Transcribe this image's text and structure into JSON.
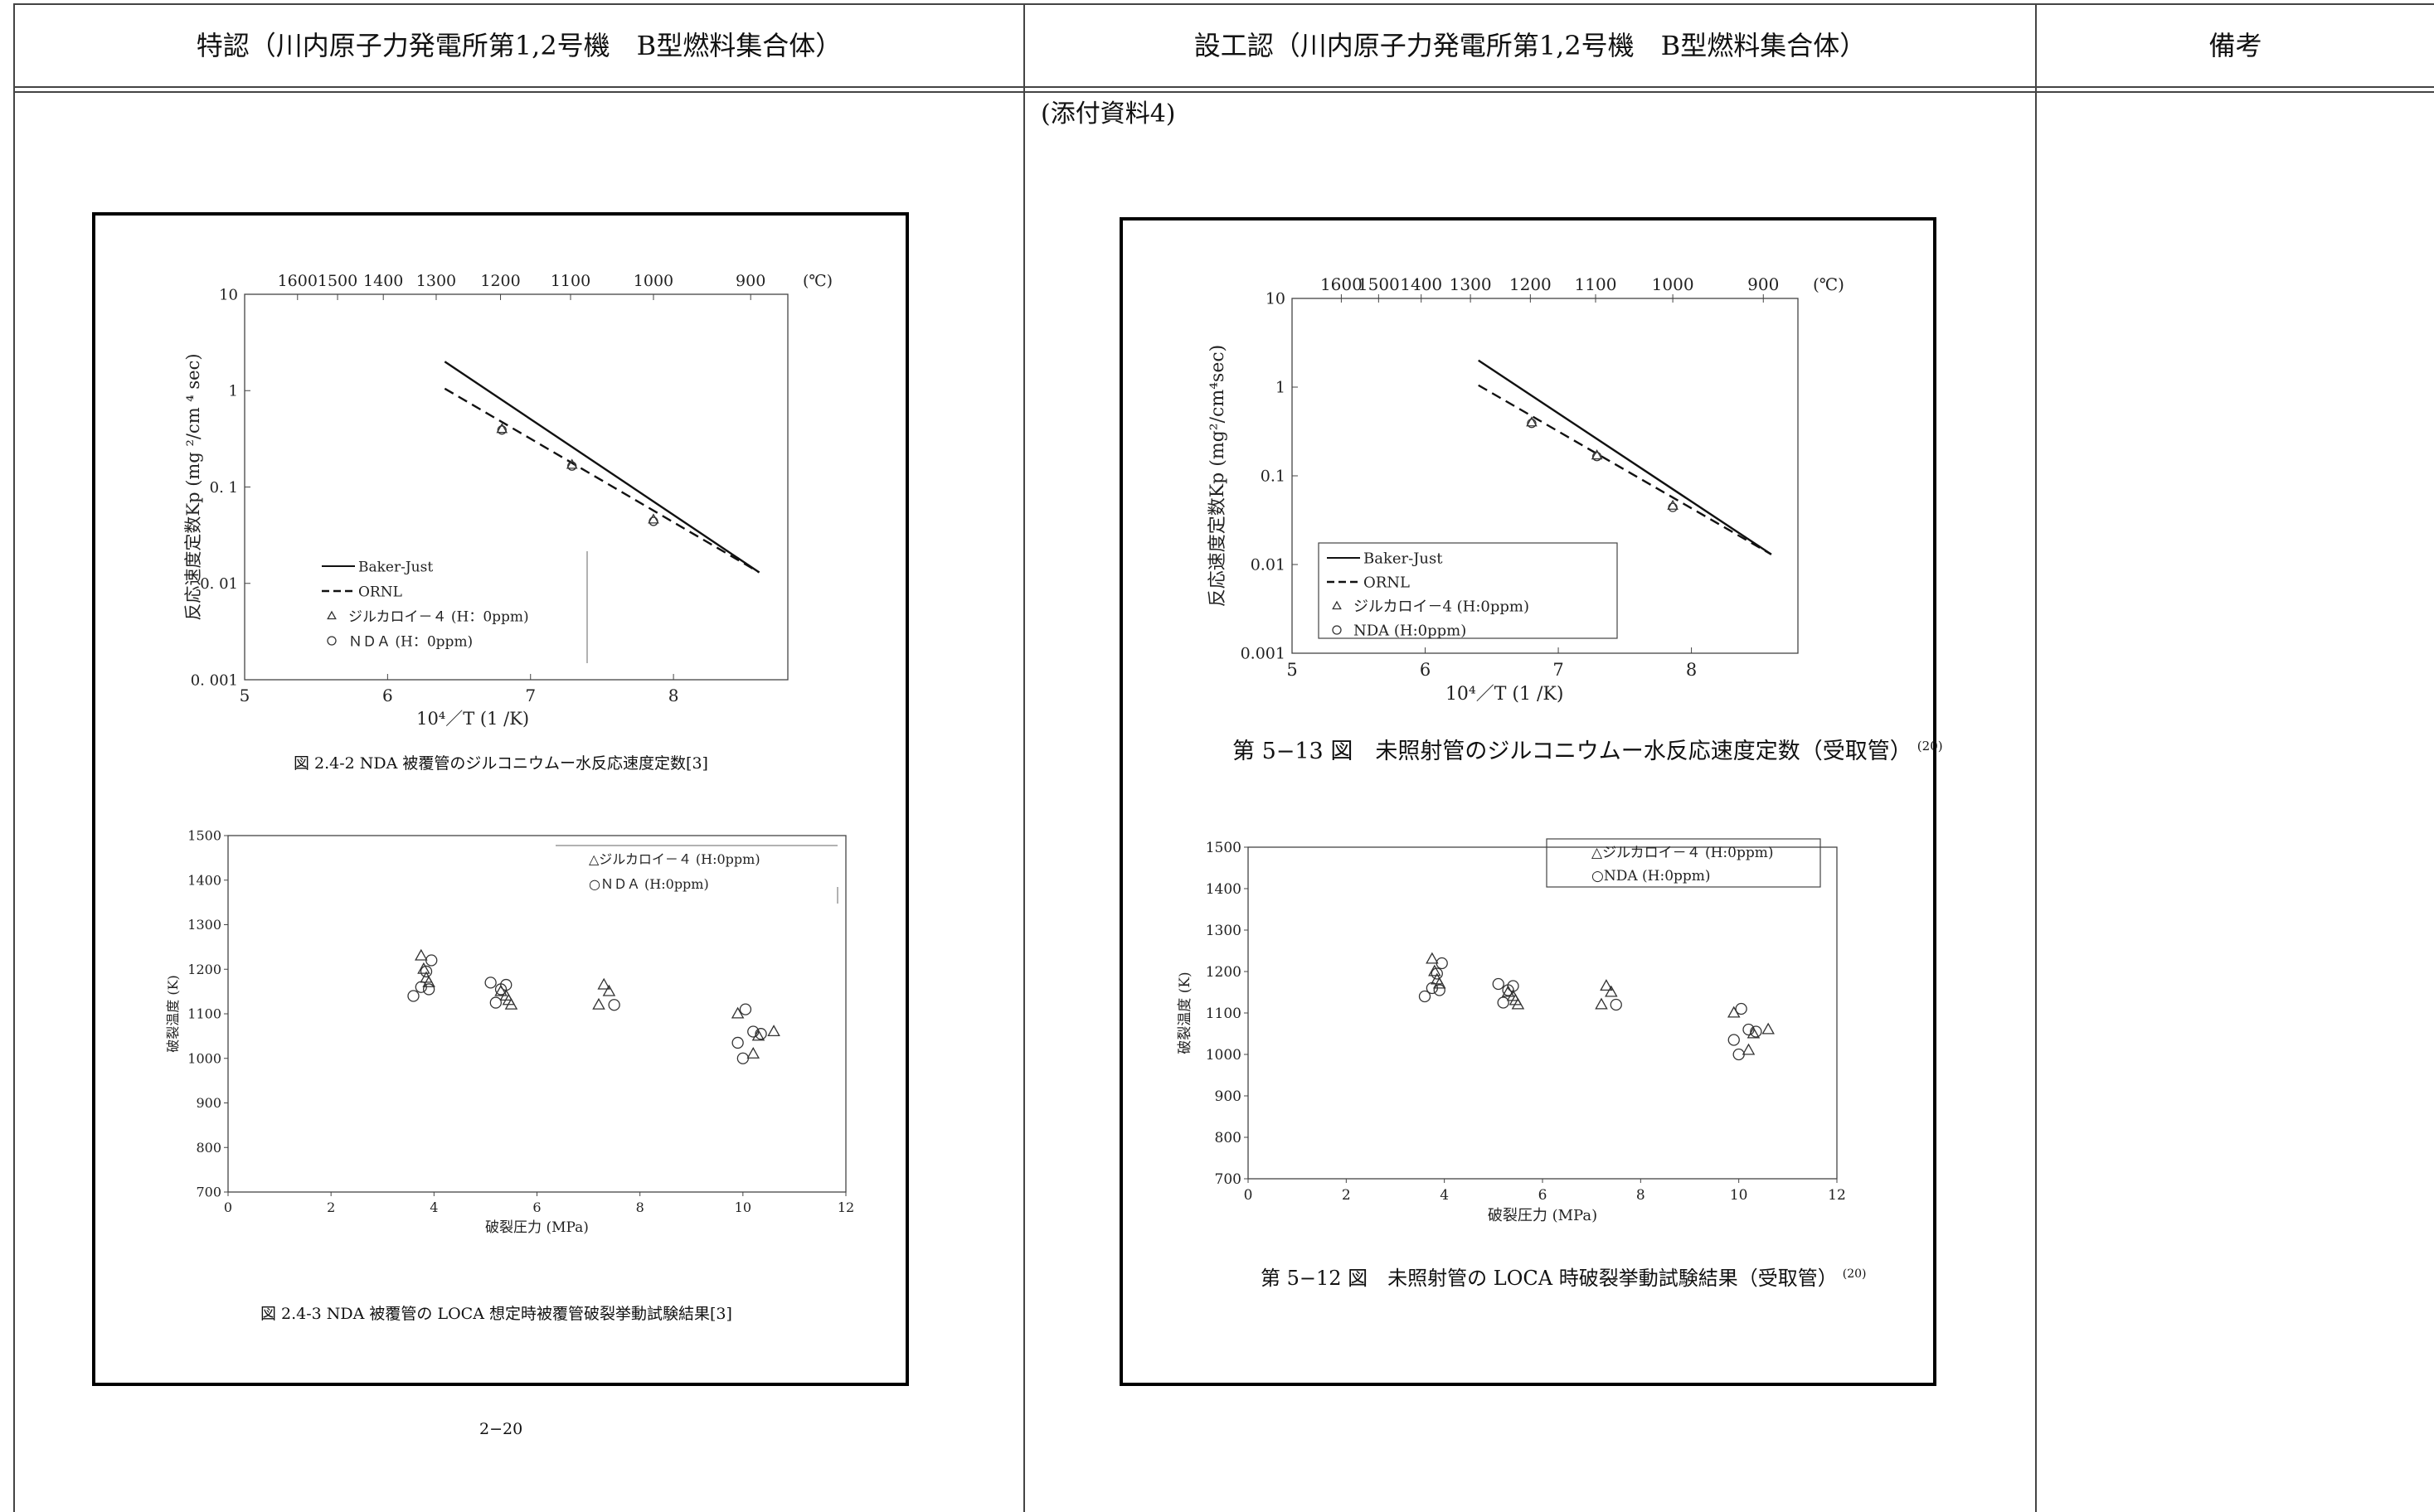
{
  "header": {
    "col1": "特認（川内原子力発電所第1,2号機　B型燃料集合体）",
    "col2": "設工認（川内原子力発電所第1,2号機　B型燃料集合体）",
    "col3": "備考"
  },
  "left": {
    "caption_kp": "図 2.4-2  NDA 被覆管のジルコニウムー水反応速度定数[3]",
    "caption_loca": "図 2.4-3  NDA 被覆管の LOCA 想定時被覆管破裂挙動試験結果[3]",
    "page_number": "2−20"
  },
  "right": {
    "attachment": "(添付資料4)",
    "caption_kp": "第 5−13 図　未照射管のジルコニウムー水反応速度定数（受取管）",
    "caption_kp_ref": "(20)",
    "caption_loca": "第 5−12 図　未照射管の LOCA 時破裂挙動試験結果（受取管）",
    "caption_loca_ref": "(20)"
  },
  "chart_data": [
    {
      "id": "kp-left",
      "type": "line",
      "xlabel": "10⁴／T (1 /K)",
      "ylabel": "反応速度定数Kp (mg ²/cm ⁴ sec)",
      "top_axis_label": "(℃)",
      "y_scale": "log",
      "xlim": [
        5,
        8.8
      ],
      "ylim": [
        0.001,
        10
      ],
      "x_ticks": [
        "5",
        "6",
        "7",
        "8"
      ],
      "y_ticks": [
        "10",
        "1",
        "0. 1",
        "0. 01",
        "0. 001"
      ],
      "top_ticks": [
        {
          "label": "1600",
          "x": 5.37
        },
        {
          "label": "1500",
          "x": 5.65
        },
        {
          "label": "1400",
          "x": 5.97
        },
        {
          "label": "1300",
          "x": 6.34
        },
        {
          "label": "1200",
          "x": 6.79
        },
        {
          "label": "1100",
          "x": 7.28
        },
        {
          "label": "1000",
          "x": 7.86
        },
        {
          "label": "900",
          "x": 8.54
        }
      ],
      "legend_position": "bottom-left",
      "series": [
        {
          "name": "Baker-Just",
          "style": "solid",
          "x": [
            6.4,
            8.6
          ],
          "y": [
            2.0,
            0.013
          ]
        },
        {
          "name": "ORNL",
          "style": "dashed",
          "x": [
            6.4,
            8.6
          ],
          "y": [
            1.05,
            0.013
          ]
        },
        {
          "name": "ジルカロイ－４ (H：0ppm)",
          "style": "marker-triangle",
          "x": [
            6.8,
            7.29,
            7.86
          ],
          "y": [
            0.4,
            0.17,
            0.046
          ]
        },
        {
          "name": "ＮＤＡ (H：0ppm)",
          "style": "marker-circle",
          "x": [
            6.8,
            7.29,
            7.86
          ],
          "y": [
            0.39,
            0.165,
            0.044
          ]
        }
      ]
    },
    {
      "id": "loca-left",
      "type": "scatter",
      "xlabel": "破裂圧力 (MPa)",
      "ylabel": "破裂温度 (K)",
      "xlim": [
        0,
        12
      ],
      "ylim": [
        700,
        1500
      ],
      "x_ticks": [
        "0",
        "2",
        "4",
        "6",
        "8",
        "10",
        "12"
      ],
      "y_ticks": [
        "1500",
        "1400",
        "1300",
        "1200",
        "1100",
        "1000",
        "900",
        "800",
        "700"
      ],
      "legend_position": "top-right",
      "series": [
        {
          "name": "△ジルカロイ－４ (H:0ppm)",
          "style": "marker-triangle",
          "x": [
            3.75,
            3.8,
            3.85,
            3.9,
            5.3,
            5.4,
            5.45,
            5.5,
            7.2,
            7.3,
            7.4,
            9.9,
            10.2,
            10.3,
            10.6
          ],
          "y": [
            1230,
            1200,
            1180,
            1170,
            1150,
            1140,
            1130,
            1120,
            1120,
            1165,
            1150,
            1100,
            1010,
            1050,
            1060
          ]
        },
        {
          "name": "○ＮＤＡ (H:0ppm)",
          "style": "marker-circle",
          "x": [
            3.6,
            3.75,
            3.85,
            3.9,
            3.95,
            5.1,
            5.2,
            5.3,
            5.4,
            7.5,
            9.9,
            10.0,
            10.05,
            10.2,
            10.35
          ],
          "y": [
            1140,
            1160,
            1195,
            1155,
            1220,
            1170,
            1125,
            1155,
            1165,
            1120,
            1035,
            1000,
            1110,
            1060,
            1055
          ]
        }
      ]
    },
    {
      "id": "kp-right",
      "type": "line",
      "xlabel": "10⁴／T (1 /K)",
      "ylabel": "反応速度定数Kp (mg²/cm⁴sec)",
      "top_axis_label": "(℃)",
      "y_scale": "log",
      "xlim": [
        5,
        8.8
      ],
      "ylim": [
        0.001,
        10
      ],
      "x_ticks": [
        "5",
        "6",
        "7",
        "8"
      ],
      "y_ticks": [
        "10",
        "1",
        "0.1",
        "0.01",
        "0.001"
      ],
      "top_ticks": [
        {
          "label": "1600",
          "x": 5.37
        },
        {
          "label": "1500",
          "x": 5.65
        },
        {
          "label": "1400",
          "x": 5.97
        },
        {
          "label": "1300",
          "x": 6.34
        },
        {
          "label": "1200",
          "x": 6.79
        },
        {
          "label": "1100",
          "x": 7.28
        },
        {
          "label": "1000",
          "x": 7.86
        },
        {
          "label": "900",
          "x": 8.54
        }
      ],
      "legend_position": "bottom-left",
      "series": [
        {
          "name": "Baker-Just",
          "style": "solid",
          "x": [
            6.4,
            8.6
          ],
          "y": [
            2.0,
            0.013
          ]
        },
        {
          "name": "ORNL",
          "style": "dashed",
          "x": [
            6.4,
            8.6
          ],
          "y": [
            1.05,
            0.013
          ]
        },
        {
          "name": "ジルカロイ－4 (H:0ppm)",
          "style": "marker-triangle",
          "x": [
            6.8,
            7.29,
            7.86
          ],
          "y": [
            0.4,
            0.17,
            0.046
          ]
        },
        {
          "name": "NDA (H:0ppm)",
          "style": "marker-circle",
          "x": [
            6.8,
            7.29,
            7.86
          ],
          "y": [
            0.39,
            0.165,
            0.044
          ]
        }
      ]
    },
    {
      "id": "loca-right",
      "type": "scatter",
      "xlabel": "破裂圧力 (MPa)",
      "ylabel": "破裂温度 (K)",
      "xlim": [
        0,
        12
      ],
      "ylim": [
        700,
        1500
      ],
      "x_ticks": [
        "0",
        "2",
        "4",
        "6",
        "8",
        "10",
        "12"
      ],
      "y_ticks": [
        "1500",
        "1400",
        "1300",
        "1200",
        "1100",
        "1000",
        "900",
        "800",
        "700"
      ],
      "legend_position": "top-right",
      "series": [
        {
          "name": "△ジルカロイ－４ (H:0ppm)",
          "style": "marker-triangle",
          "x": [
            3.75,
            3.8,
            3.85,
            3.9,
            5.3,
            5.4,
            5.45,
            5.5,
            7.2,
            7.3,
            7.4,
            9.9,
            10.2,
            10.3,
            10.6
          ],
          "y": [
            1230,
            1200,
            1180,
            1170,
            1150,
            1140,
            1130,
            1120,
            1120,
            1165,
            1150,
            1100,
            1010,
            1050,
            1060
          ]
        },
        {
          "name": "○NDA (H:0ppm)",
          "style": "marker-circle",
          "x": [
            3.6,
            3.75,
            3.85,
            3.9,
            3.95,
            5.1,
            5.2,
            5.3,
            5.4,
            7.5,
            9.9,
            10.0,
            10.05,
            10.2,
            10.35
          ],
          "y": [
            1140,
            1160,
            1195,
            1155,
            1220,
            1170,
            1125,
            1155,
            1165,
            1120,
            1035,
            1000,
            1110,
            1060,
            1055
          ]
        }
      ]
    }
  ]
}
